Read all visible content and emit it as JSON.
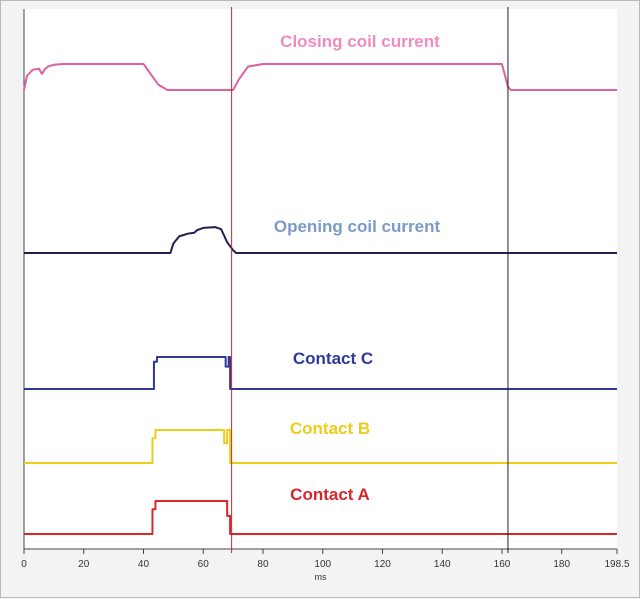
{
  "chart_data": {
    "type": "line",
    "title": "",
    "xlabel": "ms",
    "ylabel": "",
    "xlim": [
      0,
      198.5
    ],
    "x_ticks": [
      {
        "value": 0,
        "label": "0"
      },
      {
        "value": 20,
        "label": "20"
      },
      {
        "value": 40,
        "label": "40"
      },
      {
        "value": 60,
        "label": "60"
      },
      {
        "value": 80,
        "label": "80"
      },
      {
        "value": 100,
        "label": "100"
      },
      {
        "value": 120,
        "label": "120"
      },
      {
        "value": 140,
        "label": "140"
      },
      {
        "value": 160,
        "label": "160"
      },
      {
        "value": 180,
        "label": "180"
      },
      {
        "value": 198.5,
        "label": "198.5"
      }
    ],
    "cursors": [
      {
        "name": "red-cursor",
        "x": 69.5,
        "color": "#c0282c"
      },
      {
        "name": "black-cursor",
        "x": 162,
        "color": "#222222"
      }
    ],
    "grid": false,
    "series": [
      {
        "name": "Closing coil current",
        "color": "#e0609f",
        "label_color": "#f08bbd",
        "points": [
          [
            0,
            0
          ],
          [
            1,
            0.55
          ],
          [
            3,
            0.78
          ],
          [
            5,
            0.82
          ],
          [
            6,
            0.62
          ],
          [
            7,
            0.8
          ],
          [
            8,
            0.9
          ],
          [
            10,
            0.97
          ],
          [
            13,
            1
          ],
          [
            40,
            1
          ],
          [
            45,
            0.2
          ],
          [
            48,
            0
          ],
          [
            70,
            0
          ],
          [
            72,
            0.42
          ],
          [
            75,
            0.9
          ],
          [
            80,
            1
          ],
          [
            160,
            1
          ],
          [
            162,
            0.12
          ],
          [
            163,
            0
          ],
          [
            198.5,
            0
          ]
        ]
      },
      {
        "name": "Opening coil current",
        "color": "#1f2050",
        "label_color": "#7c9ac8",
        "points": [
          [
            0,
            0
          ],
          [
            49,
            0
          ],
          [
            50,
            0.35
          ],
          [
            52,
            0.62
          ],
          [
            55,
            0.72
          ],
          [
            57,
            0.75
          ],
          [
            58,
            0.85
          ],
          [
            60,
            0.93
          ],
          [
            64,
            0.96
          ],
          [
            66,
            0.88
          ],
          [
            68,
            0.4
          ],
          [
            70,
            0.1
          ],
          [
            71,
            0
          ],
          [
            198.5,
            0
          ]
        ]
      },
      {
        "name": "Contact C",
        "color": "#2e3a96",
        "label_color": "#2e3a96",
        "points": [
          [
            0,
            0
          ],
          [
            43.5,
            0
          ],
          [
            43.5,
            0.85
          ],
          [
            44.5,
            0.85
          ],
          [
            44.5,
            1
          ],
          [
            67.5,
            1
          ],
          [
            67.5,
            0.7
          ],
          [
            68.5,
            0.7
          ],
          [
            68.5,
            1
          ],
          [
            69,
            1
          ],
          [
            69,
            0
          ],
          [
            198.5,
            0
          ]
        ]
      },
      {
        "name": "Contact B",
        "color": "#f0cc1a",
        "label_color": "#f0cc1a",
        "points": [
          [
            0,
            0
          ],
          [
            43,
            0
          ],
          [
            43,
            0.75
          ],
          [
            44,
            0.75
          ],
          [
            44,
            1
          ],
          [
            67,
            1
          ],
          [
            67,
            0.6
          ],
          [
            68,
            0.6
          ],
          [
            68,
            1
          ],
          [
            69,
            1
          ],
          [
            69,
            0
          ],
          [
            198.5,
            0
          ]
        ]
      },
      {
        "name": "Contact A",
        "color": "#d8262a",
        "label_color": "#d8262a",
        "points": [
          [
            0,
            0
          ],
          [
            43,
            0
          ],
          [
            43,
            0.75
          ],
          [
            44,
            0.75
          ],
          [
            44,
            1
          ],
          [
            68,
            1
          ],
          [
            68,
            0.55
          ],
          [
            69,
            0.55
          ],
          [
            69,
            0
          ],
          [
            198.5,
            0
          ]
        ]
      }
    ]
  }
}
